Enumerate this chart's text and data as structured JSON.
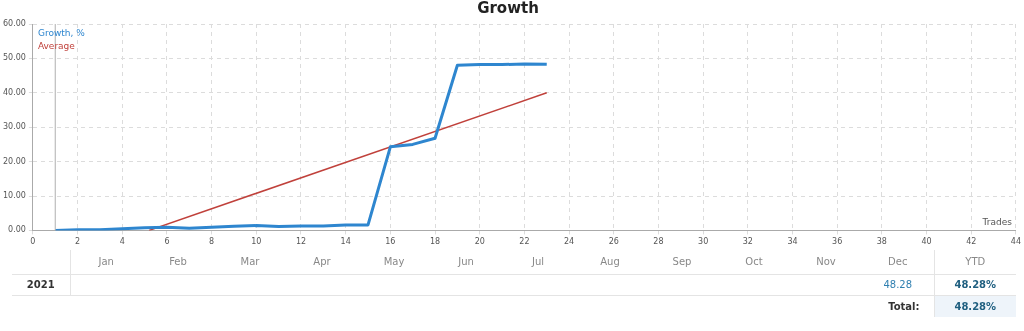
{
  "chart_data": {
    "type": "line",
    "title": "Growth",
    "xlabel": "Trades",
    "x": [
      1,
      2,
      3,
      4,
      5,
      6,
      7,
      8,
      9,
      10,
      11,
      12,
      13,
      14,
      15,
      16,
      17,
      18,
      19,
      20,
      21,
      22,
      23
    ],
    "series": [
      {
        "name": "Growth, %",
        "color": "#2e86cf",
        "values": [
          0,
          0.2,
          0.2,
          0.5,
          0.8,
          0.9,
          0.6,
          0.9,
          1.2,
          1.4,
          1.1,
          1.3,
          1.3,
          1.6,
          1.6,
          24.3,
          25,
          26.8,
          48,
          48.2,
          48.2,
          48.4,
          48.3
        ]
      },
      {
        "name": "Average",
        "color": "#c0413b",
        "x": [
          5.2,
          23
        ],
        "values": [
          0,
          40
        ]
      }
    ],
    "xlim": [
      0,
      44
    ],
    "xticks": [
      0,
      2,
      4,
      6,
      8,
      10,
      12,
      14,
      16,
      18,
      20,
      22,
      24,
      26,
      28,
      30,
      32,
      34,
      36,
      38,
      40,
      42,
      44
    ],
    "ylim": [
      0,
      60
    ],
    "yticks": [
      {
        "value": 0,
        "label": "0.00"
      },
      {
        "value": 10,
        "label": "10.00"
      },
      {
        "value": 20,
        "label": "20.00"
      },
      {
        "value": 30,
        "label": "30.00"
      },
      {
        "value": 40,
        "label": "40.00"
      },
      {
        "value": 50,
        "label": "50.00"
      },
      {
        "value": 60,
        "label": "60.00"
      }
    ],
    "ref_lines": [
      {
        "axis": "x",
        "value": 1,
        "color": "#b0b0b0"
      }
    ],
    "grid": true,
    "legend": "top left",
    "marker": "none",
    "line_style": "solid",
    "annotations": [
      "Jan",
      "Feb",
      "Mar",
      "Apr",
      "May",
      "Jun",
      "Jul",
      "Aug",
      "Sep",
      "Oct",
      "Nov",
      "Dec",
      "YTD",
      "2021",
      "48.28",
      "48.28%",
      "Total:",
      "48.28%"
    ]
  }
}
